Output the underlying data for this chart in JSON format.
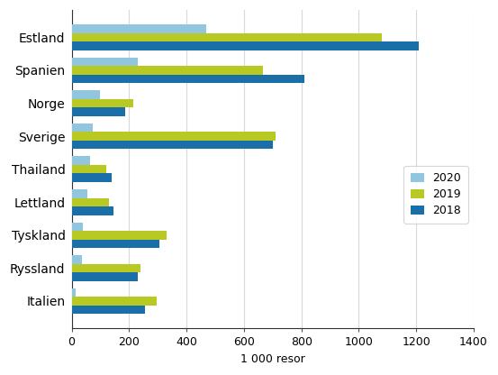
{
  "categories": [
    "Estland",
    "Spanien",
    "Norge",
    "Sverige",
    "Thailand",
    "Lettland",
    "Tyskland",
    "Ryssland",
    "Italien"
  ],
  "series": {
    "2020": [
      470,
      230,
      100,
      75,
      65,
      55,
      40,
      35,
      15
    ],
    "2019": [
      1080,
      665,
      215,
      710,
      120,
      130,
      330,
      240,
      295
    ],
    "2018": [
      1210,
      810,
      185,
      700,
      140,
      145,
      305,
      230,
      255
    ]
  },
  "colors": {
    "2020": "#92c5de",
    "2019": "#b8c924",
    "2018": "#1a6fa8"
  },
  "xlabel": "1 000 resor",
  "xlim": [
    0,
    1400
  ],
  "xticks": [
    0,
    200,
    400,
    600,
    800,
    1000,
    1200,
    1400
  ],
  "legend_labels": [
    "2020",
    "2019",
    "2018"
  ],
  "bar_height": 0.26,
  "grid_color": "#d9d9d9",
  "background_color": "#ffffff"
}
